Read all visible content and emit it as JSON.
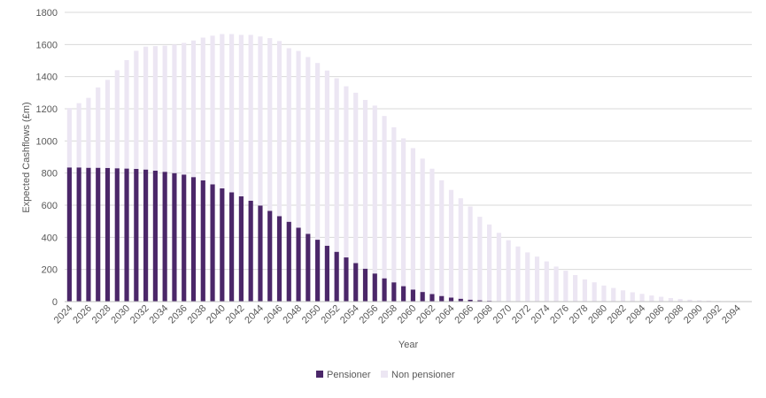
{
  "chart_data": {
    "type": "bar",
    "stacked": true,
    "xlabel": "Year",
    "ylabel": "Expected Cashflows (£m)",
    "ylim": [
      0,
      1800
    ],
    "yticks": [
      0,
      200,
      400,
      600,
      800,
      1000,
      1200,
      1400,
      1600,
      1800
    ],
    "grid": true,
    "legend_position": "bottom-center",
    "categories": [
      2024,
      2025,
      2026,
      2027,
      2028,
      2029,
      2030,
      2031,
      2032,
      2033,
      2034,
      2035,
      2036,
      2037,
      2038,
      2039,
      2040,
      2041,
      2042,
      2043,
      2044,
      2045,
      2046,
      2047,
      2048,
      2049,
      2050,
      2051,
      2052,
      2053,
      2054,
      2055,
      2056,
      2057,
      2058,
      2059,
      2060,
      2061,
      2062,
      2063,
      2064,
      2065,
      2066,
      2067,
      2068,
      2069,
      2070,
      2071,
      2072,
      2073,
      2074,
      2075,
      2076,
      2077,
      2078,
      2079,
      2080,
      2081,
      2082,
      2083,
      2084,
      2085,
      2086,
      2087,
      2088,
      2089,
      2090,
      2091,
      2092,
      2093,
      2094,
      2095
    ],
    "tick_labels": [
      "2024",
      "2026",
      "2028",
      "2030",
      "2032",
      "2034",
      "2036",
      "2038",
      "2040",
      "2042",
      "2044",
      "2046",
      "2048",
      "2050",
      "2052",
      "2054",
      "2056",
      "2058",
      "2060",
      "2062",
      "2064",
      "2066",
      "2068",
      "2070",
      "2072",
      "2074",
      "2076",
      "2078",
      "2080",
      "2082",
      "2084",
      "2086",
      "2088",
      "2090",
      "2092",
      "2094"
    ],
    "series": [
      {
        "name": "Pensioner",
        "color": "#4b2769",
        "values": [
          835,
          835,
          833,
          833,
          832,
          830,
          828,
          826,
          822,
          815,
          808,
          800,
          790,
          775,
          755,
          730,
          705,
          680,
          655,
          628,
          598,
          565,
          532,
          497,
          460,
          422,
          385,
          348,
          310,
          275,
          240,
          205,
          175,
          145,
          120,
          96,
          75,
          60,
          47,
          35,
          25,
          18,
          12,
          8,
          5,
          3,
          2,
          1,
          1,
          0,
          0,
          0,
          0,
          0,
          0,
          0,
          0,
          0,
          0,
          0,
          0,
          0,
          0,
          0,
          0,
          0,
          0,
          0,
          0,
          0,
          0,
          0
        ]
      },
      {
        "name": "Non pensioner",
        "color": "#ece6f3",
        "values": [
          370,
          400,
          435,
          500,
          548,
          610,
          675,
          735,
          765,
          775,
          785,
          800,
          820,
          850,
          888,
          925,
          960,
          985,
          1005,
          1032,
          1052,
          1075,
          1090,
          1080,
          1100,
          1100,
          1100,
          1090,
          1080,
          1065,
          1060,
          1050,
          1045,
          1010,
          965,
          920,
          880,
          830,
          780,
          720,
          670,
          625,
          580,
          520,
          475,
          425,
          380,
          342,
          305,
          280,
          250,
          218,
          192,
          165,
          138,
          120,
          100,
          85,
          70,
          58,
          48,
          38,
          30,
          22,
          16,
          12,
          8,
          6,
          4,
          3,
          2,
          1
        ]
      }
    ]
  }
}
